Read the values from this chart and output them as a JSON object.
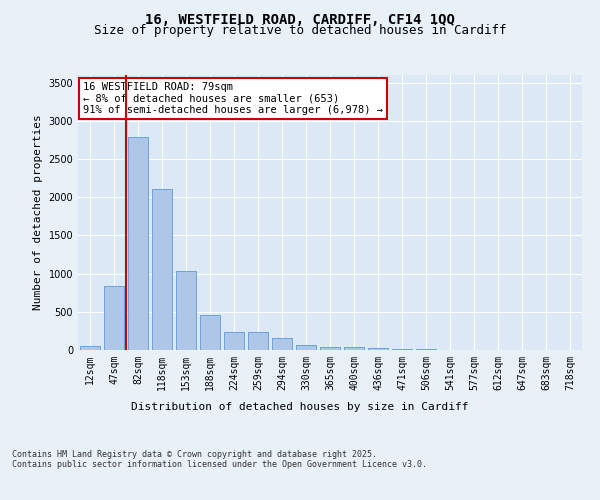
{
  "title_line1": "16, WESTFIELD ROAD, CARDIFF, CF14 1QQ",
  "title_line2": "Size of property relative to detached houses in Cardiff",
  "xlabel": "Distribution of detached houses by size in Cardiff",
  "ylabel": "Number of detached properties",
  "categories": [
    "12sqm",
    "47sqm",
    "82sqm",
    "118sqm",
    "153sqm",
    "188sqm",
    "224sqm",
    "259sqm",
    "294sqm",
    "330sqm",
    "365sqm",
    "400sqm",
    "436sqm",
    "471sqm",
    "506sqm",
    "541sqm",
    "577sqm",
    "612sqm",
    "647sqm",
    "683sqm",
    "718sqm"
  ],
  "values": [
    50,
    840,
    2790,
    2105,
    1040,
    460,
    235,
    230,
    155,
    65,
    40,
    35,
    20,
    15,
    10,
    5,
    3,
    2,
    1,
    1,
    1
  ],
  "bar_color": "#aec6e8",
  "bar_edge_color": "#5b9bd5",
  "vline_x_idx": 2,
  "vline_color": "#cc0000",
  "annotation_text": "16 WESTFIELD ROAD: 79sqm\n← 8% of detached houses are smaller (653)\n91% of semi-detached houses are larger (6,978) →",
  "annotation_box_color": "#ffffff",
  "annotation_box_edge": "#cc0000",
  "ylim": [
    0,
    3600
  ],
  "yticks": [
    0,
    500,
    1000,
    1500,
    2000,
    2500,
    3000,
    3500
  ],
  "background_color": "#e8f0f8",
  "plot_bg_color": "#dce8f5",
  "grid_color": "#ffffff",
  "footnote": "Contains HM Land Registry data © Crown copyright and database right 2025.\nContains public sector information licensed under the Open Government Licence v3.0.",
  "title_fontsize": 10,
  "subtitle_fontsize": 9,
  "tick_fontsize": 7,
  "ylabel_fontsize": 8,
  "xlabel_fontsize": 8,
  "annotation_fontsize": 7.5
}
